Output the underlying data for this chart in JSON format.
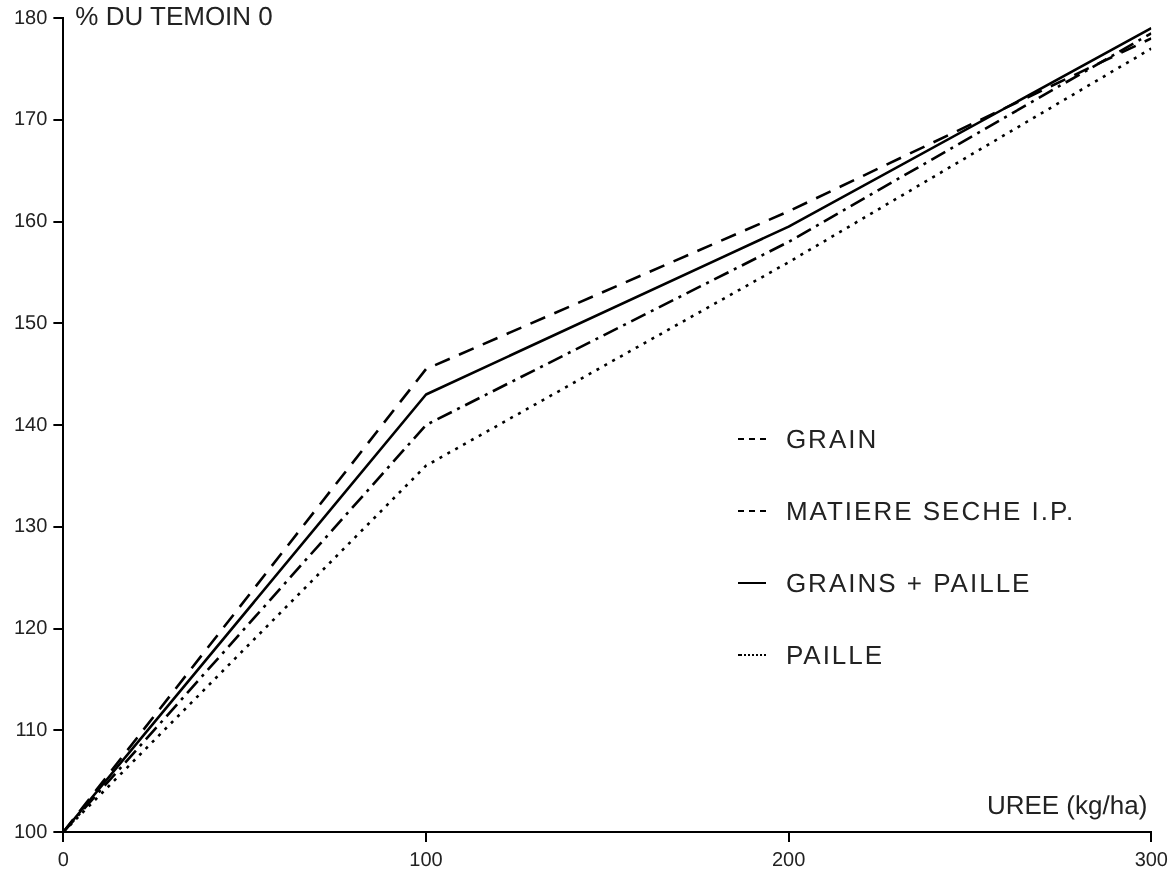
{
  "chart_data": {
    "type": "line",
    "ylabel": "% DU TEMOIN 0",
    "xlabel": "UREE (kg/ha)",
    "x": [
      0,
      100,
      200,
      300
    ],
    "series": [
      {
        "name": "GRAIN",
        "color": "#000000",
        "line_style": "dashed",
        "values": [
          100,
          145.5,
          161,
          178
        ]
      },
      {
        "name": "MATIERE SECHE I.P.",
        "color": "#000000",
        "line_style": "dashdot",
        "values": [
          100,
          140,
          158,
          178.5
        ]
      },
      {
        "name": "GRAINS + PAILLE",
        "color": "#000000",
        "line_style": "solid",
        "values": [
          100,
          143,
          159.5,
          179
        ]
      },
      {
        "name": "PAILLE",
        "color": "#000000",
        "line_style": "dotted",
        "values": [
          100,
          136,
          156,
          177
        ]
      }
    ],
    "xlim": [
      0,
      300
    ],
    "xticks": [
      0,
      100,
      200,
      300
    ],
    "ylim": [
      100,
      180
    ],
    "yticks": [
      100,
      110,
      120,
      130,
      140,
      150,
      160,
      170,
      180
    ],
    "grid": false,
    "legend": "right",
    "marker": "none"
  }
}
